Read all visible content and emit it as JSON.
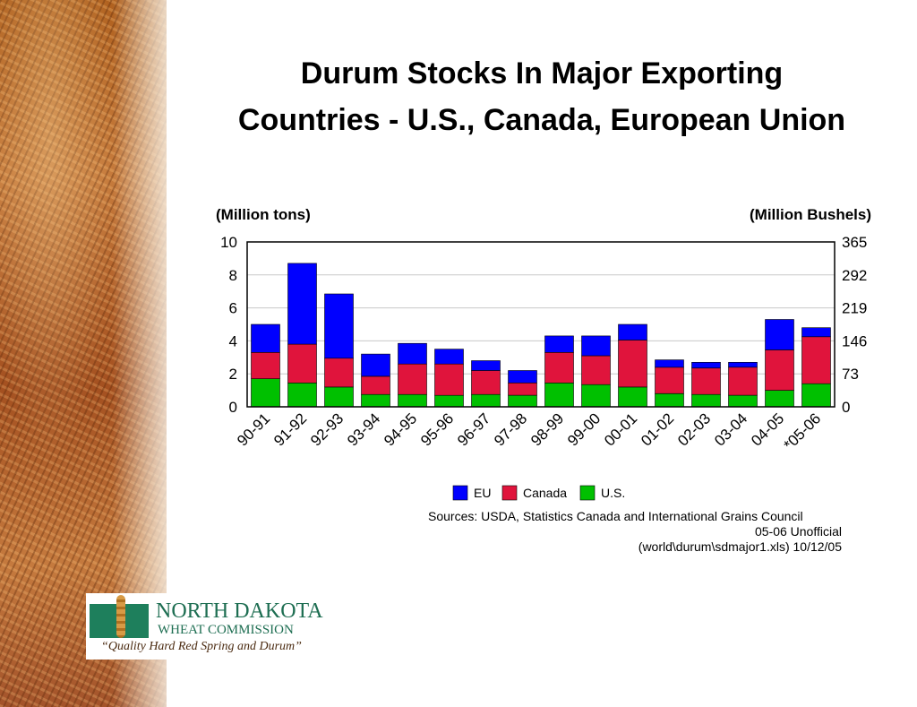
{
  "slide": {
    "title_line1": "Durum Stocks In Major Exporting",
    "title_line2": "Countries - U.S., Canada, European Union",
    "background_image": "wheat-grain-photo"
  },
  "chart_data": {
    "type": "bar",
    "stacked": true,
    "y_left_label": "(Million tons)",
    "y_right_label": "(Million Bushels)",
    "ylim": [
      0,
      10
    ],
    "y_left_ticks": [
      "0",
      "2",
      "4",
      "6",
      "8",
      "10"
    ],
    "y_right_ticks": [
      "0",
      "73",
      "146",
      "219",
      "292",
      "365"
    ],
    "grid": true,
    "legend_position": "bottom",
    "categories": [
      "90-91",
      "91-92",
      "92-93",
      "93-94",
      "94-95",
      "95-96",
      "96-97",
      "97-98",
      "98-99",
      "99-00",
      "00-01",
      "01-02",
      "02-03",
      "03-04",
      "04-05",
      "*05-06"
    ],
    "series": [
      {
        "name": "U.S.",
        "color": "#00c000",
        "values": [
          1.7,
          1.45,
          1.2,
          0.75,
          0.75,
          0.7,
          0.75,
          0.7,
          1.45,
          1.35,
          1.2,
          0.8,
          0.75,
          0.7,
          1.0,
          1.4
        ]
      },
      {
        "name": "Canada",
        "color": "#e0143c",
        "values": [
          1.6,
          2.35,
          1.75,
          1.1,
          1.85,
          1.9,
          1.45,
          0.75,
          1.85,
          1.75,
          2.85,
          1.6,
          1.6,
          1.7,
          2.45,
          2.85
        ]
      },
      {
        "name": "EU",
        "color": "#0000ff",
        "values": [
          1.7,
          4.9,
          3.9,
          1.35,
          1.25,
          0.9,
          0.6,
          0.75,
          1.0,
          1.2,
          0.95,
          0.45,
          0.35,
          0.3,
          1.85,
          0.55
        ]
      }
    ]
  },
  "legend": [
    {
      "label": "EU",
      "color": "#0000ff"
    },
    {
      "label": "Canada",
      "color": "#e0143c"
    },
    {
      "label": "U.S.",
      "color": "#00c000"
    }
  ],
  "sources": {
    "line1": "Sources: USDA, Statistics Canada and International Grains Council",
    "line2": "05-06 Unofficial",
    "line3": "(world\\durum\\sdmajor1.xls) 10/12/05"
  },
  "logo": {
    "org_line1": "NORTH DAKOTA",
    "org_line2": "WHEAT COMMISSION",
    "tagline": "“Quality Hard Red Spring and Durum”",
    "brand_color": "#1e6e52"
  }
}
